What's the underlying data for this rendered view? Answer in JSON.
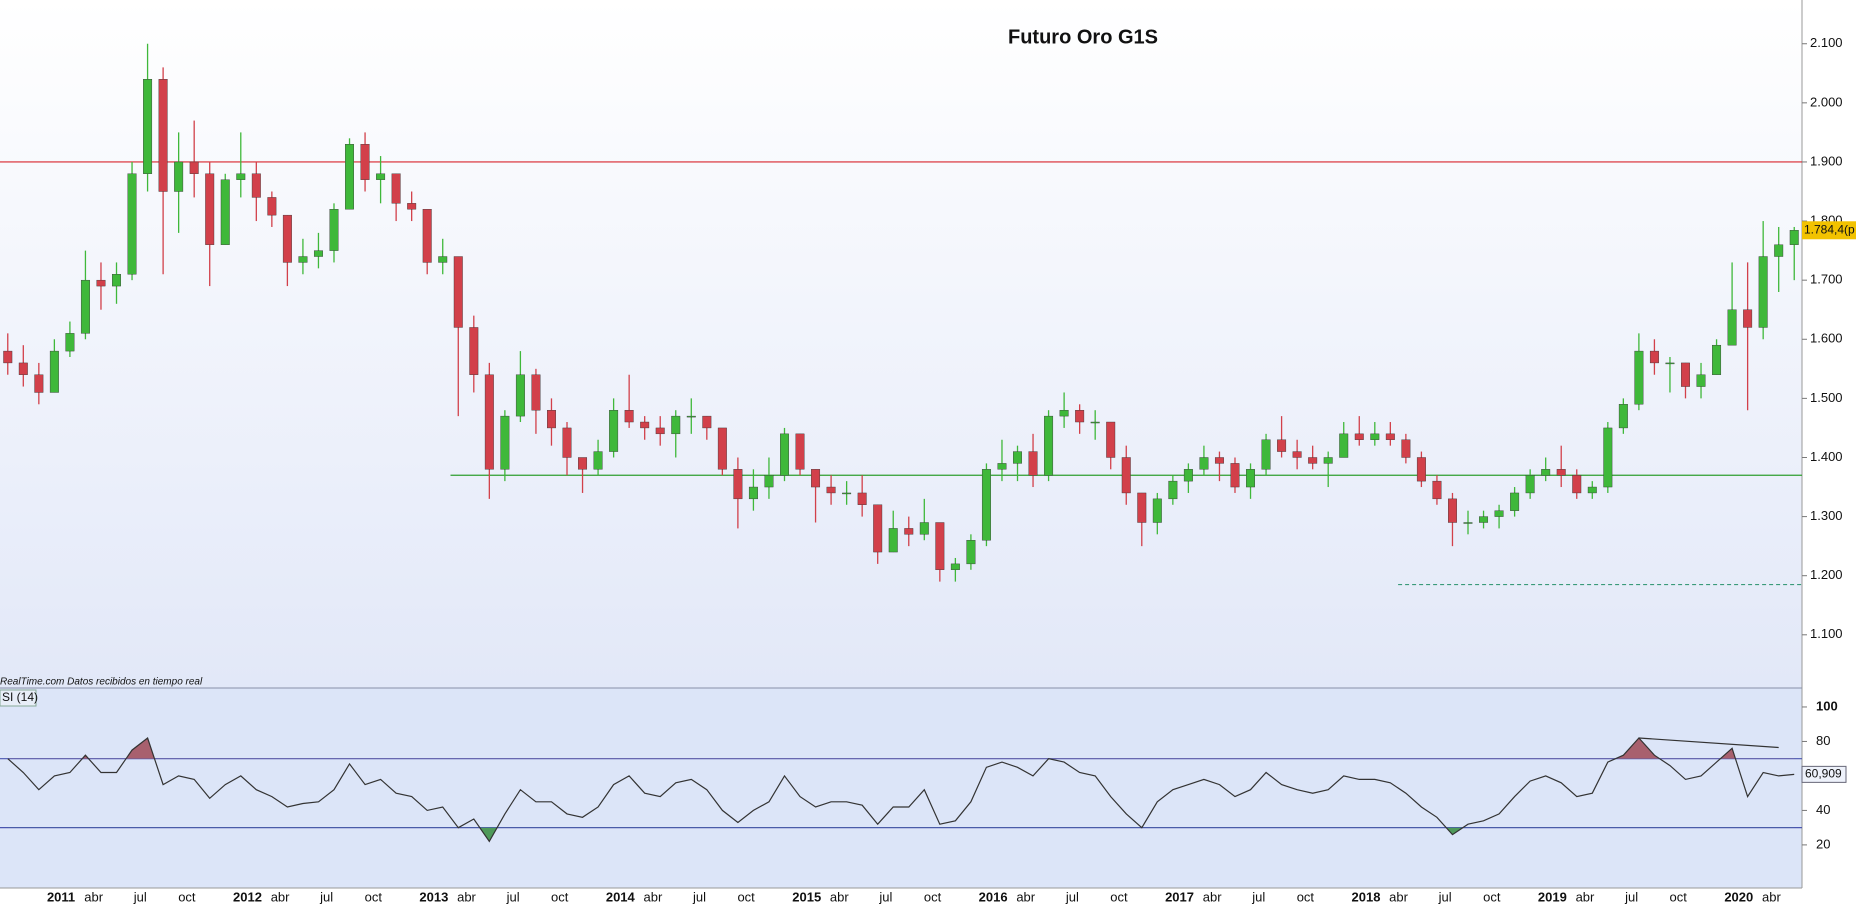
{
  "chart_data": [
    {
      "type": "candlestick",
      "title": "Futuro Oro G1S",
      "source": "RealTime.com  Datos recibidos en tiempo real",
      "x": [
        "2010-11",
        "2010-12",
        "2011-01",
        "2011-02",
        "2011-03",
        "2011-04",
        "2011-05",
        "2011-06",
        "2011-07",
        "2011-08",
        "2011-09",
        "2011-10",
        "2011-11",
        "2011-12",
        "2012-01",
        "2012-02",
        "2012-03",
        "2012-04",
        "2012-05",
        "2012-06",
        "2012-07",
        "2012-08",
        "2012-09",
        "2012-10",
        "2012-11",
        "2012-12",
        "2013-01",
        "2013-02",
        "2013-03",
        "2013-04",
        "2013-05",
        "2013-06",
        "2013-07",
        "2013-08",
        "2013-09",
        "2013-10",
        "2013-11",
        "2013-12",
        "2014-01",
        "2014-02",
        "2014-03",
        "2014-04",
        "2014-05",
        "2014-06",
        "2014-07",
        "2014-08",
        "2014-09",
        "2014-10",
        "2014-11",
        "2014-12",
        "2015-01",
        "2015-02",
        "2015-03",
        "2015-04",
        "2015-05",
        "2015-06",
        "2015-07",
        "2015-08",
        "2015-09",
        "2015-10",
        "2015-11",
        "2015-12",
        "2016-01",
        "2016-02",
        "2016-03",
        "2016-04",
        "2016-05",
        "2016-06",
        "2016-07",
        "2016-08",
        "2016-09",
        "2016-10",
        "2016-11",
        "2016-12",
        "2017-01",
        "2017-02",
        "2017-03",
        "2017-04",
        "2017-05",
        "2017-06",
        "2017-07",
        "2017-08",
        "2017-09",
        "2017-10",
        "2017-11",
        "2017-12",
        "2018-01",
        "2018-02",
        "2018-03",
        "2018-04",
        "2018-05",
        "2018-06",
        "2018-07",
        "2018-08",
        "2018-09",
        "2018-10",
        "2018-11",
        "2018-12",
        "2019-01",
        "2019-02",
        "2019-03",
        "2019-04",
        "2019-05",
        "2019-06",
        "2019-07",
        "2019-08",
        "2019-09",
        "2019-10",
        "2019-11",
        "2019-12",
        "2020-01",
        "2020-02",
        "2020-03",
        "2020-04",
        "2020-05",
        "2020-06"
      ],
      "open": [
        1580,
        1560,
        1540,
        1510,
        1580,
        1610,
        1700,
        1690,
        1710,
        1880,
        2040,
        1850,
        1900,
        1880,
        1760,
        1870,
        1880,
        1840,
        1810,
        1730,
        1740,
        1750,
        1820,
        1930,
        1870,
        1880,
        1830,
        1820,
        1730,
        1740,
        1620,
        1540,
        1380,
        1470,
        1540,
        1480,
        1450,
        1400,
        1380,
        1410,
        1480,
        1460,
        1450,
        1440,
        1470,
        1470,
        1450,
        1380,
        1330,
        1350,
        1370,
        1440,
        1380,
        1350,
        1340,
        1340,
        1320,
        1240,
        1280,
        1270,
        1290,
        1210,
        1220,
        1260,
        1380,
        1390,
        1410,
        1370,
        1470,
        1480,
        1460,
        1460,
        1400,
        1340,
        1290,
        1330,
        1360,
        1380,
        1400,
        1390,
        1350,
        1380,
        1430,
        1410,
        1400,
        1390,
        1400,
        1440,
        1430,
        1440,
        1430,
        1400,
        1360,
        1330,
        1290,
        1290,
        1300,
        1310,
        1340,
        1370,
        1380,
        1370,
        1340,
        1350,
        1450,
        1490,
        1580,
        1560,
        1560,
        1520,
        1540,
        1590,
        1650,
        1620,
        1740,
        1760
      ],
      "high": [
        1610,
        1590,
        1560,
        1600,
        1630,
        1750,
        1730,
        1730,
        1900,
        2100,
        2060,
        1950,
        1970,
        1900,
        1880,
        1950,
        1900,
        1850,
        1810,
        1770,
        1780,
        1830,
        1940,
        1950,
        1910,
        1880,
        1850,
        1810,
        1770,
        1740,
        1640,
        1560,
        1480,
        1580,
        1550,
        1500,
        1460,
        1400,
        1430,
        1500,
        1540,
        1470,
        1470,
        1480,
        1500,
        1470,
        1440,
        1400,
        1380,
        1400,
        1450,
        1440,
        1380,
        1370,
        1360,
        1370,
        1320,
        1310,
        1300,
        1330,
        1280,
        1230,
        1270,
        1390,
        1430,
        1420,
        1440,
        1480,
        1510,
        1490,
        1480,
        1460,
        1420,
        1340,
        1340,
        1370,
        1390,
        1420,
        1410,
        1400,
        1390,
        1440,
        1470,
        1430,
        1420,
        1410,
        1460,
        1470,
        1460,
        1460,
        1440,
        1410,
        1370,
        1340,
        1310,
        1310,
        1320,
        1350,
        1380,
        1400,
        1420,
        1380,
        1360,
        1460,
        1500,
        1610,
        1600,
        1570,
        1560,
        1560,
        1600,
        1730,
        1730,
        1800,
        1790,
        1790
      ],
      "low": [
        1540,
        1520,
        1490,
        1510,
        1570,
        1600,
        1650,
        1660,
        1700,
        1850,
        1710,
        1780,
        1840,
        1690,
        1760,
        1840,
        1800,
        1790,
        1690,
        1710,
        1720,
        1730,
        1820,
        1850,
        1830,
        1800,
        1800,
        1710,
        1710,
        1470,
        1510,
        1330,
        1360,
        1460,
        1440,
        1420,
        1370,
        1340,
        1370,
        1400,
        1450,
        1430,
        1420,
        1400,
        1440,
        1430,
        1370,
        1280,
        1310,
        1330,
        1360,
        1370,
        1290,
        1320,
        1320,
        1300,
        1220,
        1240,
        1250,
        1260,
        1190,
        1190,
        1210,
        1250,
        1360,
        1360,
        1350,
        1360,
        1450,
        1440,
        1430,
        1380,
        1320,
        1250,
        1270,
        1320,
        1340,
        1370,
        1360,
        1340,
        1330,
        1370,
        1400,
        1380,
        1380,
        1350,
        1400,
        1420,
        1420,
        1420,
        1390,
        1350,
        1320,
        1250,
        1270,
        1280,
        1280,
        1300,
        1330,
        1360,
        1350,
        1330,
        1330,
        1340,
        1440,
        1480,
        1540,
        1510,
        1500,
        1500,
        1540,
        1600,
        1480,
        1600,
        1680,
        1700
      ],
      "close": [
        1560,
        1540,
        1510,
        1580,
        1610,
        1700,
        1690,
        1710,
        1880,
        2040,
        1850,
        1900,
        1880,
        1760,
        1870,
        1880,
        1840,
        1810,
        1730,
        1740,
        1750,
        1820,
        1930,
        1870,
        1880,
        1830,
        1820,
        1730,
        1740,
        1620,
        1540,
        1380,
        1470,
        1540,
        1480,
        1450,
        1400,
        1380,
        1410,
        1480,
        1460,
        1450,
        1440,
        1470,
        1470,
        1450,
        1380,
        1330,
        1350,
        1370,
        1440,
        1380,
        1350,
        1340,
        1340,
        1320,
        1240,
        1280,
        1270,
        1290,
        1210,
        1220,
        1260,
        1380,
        1390,
        1410,
        1370,
        1470,
        1480,
        1460,
        1460,
        1400,
        1340,
        1290,
        1330,
        1360,
        1380,
        1400,
        1390,
        1350,
        1380,
        1430,
        1410,
        1400,
        1390,
        1400,
        1440,
        1430,
        1440,
        1430,
        1400,
        1360,
        1330,
        1290,
        1290,
        1300,
        1310,
        1340,
        1370,
        1380,
        1370,
        1340,
        1350,
        1450,
        1490,
        1580,
        1560,
        1560,
        1520,
        1540,
        1590,
        1650,
        1620,
        1740,
        1760,
        1784.4
      ],
      "last_label": "1.784,4(p",
      "colors": {
        "up": "#3fb83a",
        "down": "#d2404a"
      },
      "xlim": [
        "2010-11",
        "2020-07"
      ],
      "xticks": [
        {
          "value": "2011-01",
          "label": "2011"
        },
        {
          "value": "2011-04",
          "label": "abr"
        },
        {
          "value": "2011-07",
          "label": "jul"
        },
        {
          "value": "2011-10",
          "label": "oct"
        },
        {
          "value": "2012-01",
          "label": "2012"
        },
        {
          "value": "2012-04",
          "label": "abr"
        },
        {
          "value": "2012-07",
          "label": "jul"
        },
        {
          "value": "2012-10",
          "label": "oct"
        },
        {
          "value": "2013-01",
          "label": "2013"
        },
        {
          "value": "2013-04",
          "label": "abr"
        },
        {
          "value": "2013-07",
          "label": "jul"
        },
        {
          "value": "2013-10",
          "label": "oct"
        },
        {
          "value": "2014-01",
          "label": "2014"
        },
        {
          "value": "2014-04",
          "label": "abr"
        },
        {
          "value": "2014-07",
          "label": "jul"
        },
        {
          "value": "2014-10",
          "label": "oct"
        },
        {
          "value": "2015-01",
          "label": "2015"
        },
        {
          "value": "2015-04",
          "label": "abr"
        },
        {
          "value": "2015-07",
          "label": "jul"
        },
        {
          "value": "2015-10",
          "label": "oct"
        },
        {
          "value": "2016-01",
          "label": "2016"
        },
        {
          "value": "2016-04",
          "label": "abr"
        },
        {
          "value": "2016-07",
          "label": "jul"
        },
        {
          "value": "2016-10",
          "label": "oct"
        },
        {
          "value": "2017-01",
          "label": "2017"
        },
        {
          "value": "2017-04",
          "label": "abr"
        },
        {
          "value": "2017-07",
          "label": "jul"
        },
        {
          "value": "2017-10",
          "label": "oct"
        },
        {
          "value": "2018-01",
          "label": "2018"
        },
        {
          "value": "2018-04",
          "label": "abr"
        },
        {
          "value": "2018-07",
          "label": "jul"
        },
        {
          "value": "2018-10",
          "label": "oct"
        },
        {
          "value": "2019-01",
          "label": "2019"
        },
        {
          "value": "2019-04",
          "label": "abr"
        },
        {
          "value": "2019-07",
          "label": "jul"
        },
        {
          "value": "2019-10",
          "label": "oct"
        },
        {
          "value": "2020-01",
          "label": "2020"
        },
        {
          "value": "2020-04",
          "label": "abr"
        }
      ],
      "ylim": [
        1010,
        2174
      ],
      "yticks": [
        {
          "value": 1100,
          "label": "1.100"
        },
        {
          "value": 1200,
          "label": "1.200"
        },
        {
          "value": 1300,
          "label": "1.300"
        },
        {
          "value": 1400,
          "label": "1.400"
        },
        {
          "value": 1500,
          "label": "1.500"
        },
        {
          "value": 1600,
          "label": "1.600"
        },
        {
          "value": 1700,
          "label": "1.700"
        },
        {
          "value": 1800,
          "label": "1.800"
        },
        {
          "value": 1900,
          "label": "1.900"
        },
        {
          "value": 2000,
          "label": "2.000"
        },
        {
          "value": 2100,
          "label": "2.100"
        }
      ],
      "hlines": [
        {
          "value": 1900,
          "color": "#d9272e",
          "from": "2010-11"
        },
        {
          "value": 1370,
          "color": "#2e9e2e",
          "from": "2013-04"
        },
        {
          "value": 1185,
          "color": "#3a9a7a",
          "from": "2018-05",
          "dashed": true
        }
      ]
    },
    {
      "type": "line",
      "name": "SI (14)",
      "values": [
        70,
        62,
        52,
        60,
        62,
        72,
        62,
        62,
        75,
        82,
        55,
        60,
        58,
        47,
        55,
        60,
        52,
        48,
        42,
        44,
        45,
        52,
        67,
        55,
        58,
        50,
        48,
        40,
        42,
        30,
        35,
        22,
        38,
        52,
        45,
        45,
        38,
        36,
        42,
        55,
        60,
        50,
        48,
        56,
        58,
        52,
        40,
        33,
        40,
        45,
        60,
        48,
        42,
        45,
        45,
        43,
        32,
        42,
        42,
        52,
        32,
        34,
        45,
        65,
        68,
        65,
        60,
        70,
        68,
        62,
        60,
        48,
        38,
        30,
        45,
        52,
        55,
        58,
        55,
        48,
        52,
        62,
        55,
        52,
        50,
        52,
        60,
        58,
        58,
        56,
        50,
        42,
        36,
        26,
        32,
        34,
        38,
        48,
        57,
        60,
        56,
        48,
        50,
        68,
        72,
        82,
        72,
        66,
        58,
        60,
        68,
        76,
        48,
        62,
        60,
        60.909
      ],
      "last_label": "60,909",
      "color": "#333333",
      "ylim": [
        -5,
        111
      ],
      "yticks": [
        20,
        40,
        60,
        80,
        100
      ],
      "bands": [
        30,
        70
      ],
      "band_color": "#4a55b0",
      "overbought_color": "#a8606e",
      "oversold_color": "#4f9a5a",
      "trendline": {
        "x": [
          "2019-08",
          "2020-05"
        ],
        "values": [
          82,
          76.5
        ]
      }
    }
  ]
}
